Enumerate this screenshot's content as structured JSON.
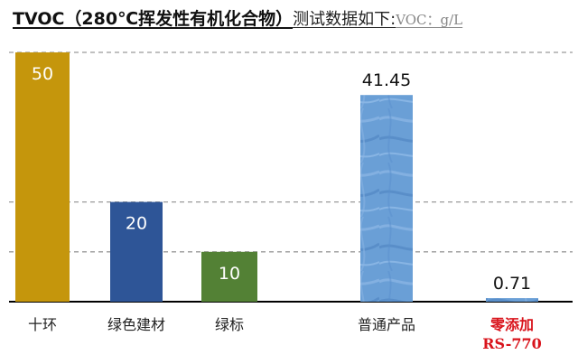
{
  "chart_data": {
    "type": "bar",
    "title": "TVOC（280℃挥发性有机化合物）",
    "subtitle": "测试数据如下:",
    "unit_label": "VOC：g/L",
    "categories": [
      "十环",
      "绿色建材",
      "绿标",
      "普通产品",
      "零添加\nRS-770"
    ],
    "category_lines": [
      [
        "十环"
      ],
      [
        "绿色建材"
      ],
      [
        "绿标"
      ],
      [
        "普通产品"
      ],
      [
        "零添加",
        "RS-770"
      ]
    ],
    "values": [
      50,
      20,
      10,
      41.45,
      0.71
    ],
    "value_labels": [
      "50",
      "20",
      "10",
      "41.45",
      "0.71"
    ],
    "colors": [
      "#C5960C",
      "#2E5597",
      "#538135",
      "#6A9FD6",
      "#6A9FD6"
    ],
    "label_colors": [
      "#ffffff",
      "#ffffff",
      "#ffffff",
      "#111111",
      "#111111"
    ],
    "category_label_colors": [
      "#222222",
      "#222222",
      "#222222",
      "#222222",
      "#D9141C"
    ],
    "ylim": [
      0,
      50
    ],
    "gridlines": [
      10,
      20,
      50
    ]
  }
}
